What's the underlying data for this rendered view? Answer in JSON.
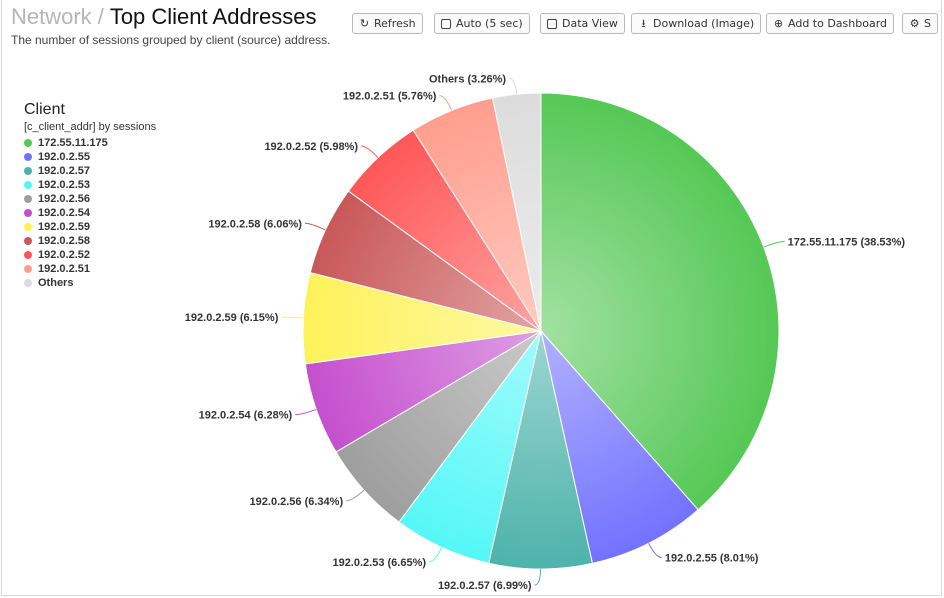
{
  "header": {
    "crumb": "Network",
    "separator": "/",
    "title": "Top Client Addresses",
    "subtitle": "The number of sessions grouped by client (source) address."
  },
  "toolbar": {
    "refresh": "Refresh",
    "auto": "Auto (5 sec)",
    "data_view": "Data View",
    "download": "Download (Image)",
    "add_dashboard": "Add to Dashboard",
    "settings": "S"
  },
  "legend": {
    "title": "Client",
    "subtitle": "[c_client_addr] by sessions"
  },
  "chart_data": {
    "type": "pie",
    "title": "",
    "legend_position": "left",
    "slices": [
      {
        "name": "172.55.11.175",
        "value": 38.53,
        "label": "172.55.11.175 (38.53%)",
        "color": "#55c855"
      },
      {
        "name": "192.0.2.55",
        "value": 8.01,
        "label": "192.0.2.55 (8.01%)",
        "color": "#7272ff"
      },
      {
        "name": "192.0.2.57",
        "value": 6.99,
        "label": "192.0.2.57 (6.99%)",
        "color": "#4db3ab"
      },
      {
        "name": "192.0.2.53",
        "value": 6.65,
        "label": "192.0.2.53 (6.65%)",
        "color": "#55f7f7"
      },
      {
        "name": "192.0.2.56",
        "value": 6.34,
        "label": "192.0.2.56 (6.34%)",
        "color": "#9e9e9e"
      },
      {
        "name": "192.0.2.54",
        "value": 6.28,
        "label": "192.0.2.54 (6.28%)",
        "color": "#c54fce"
      },
      {
        "name": "192.0.2.59",
        "value": 6.15,
        "label": "192.0.2.59 (6.15%)",
        "color": "#fef25a"
      },
      {
        "name": "192.0.2.58",
        "value": 6.06,
        "label": "192.0.2.58 (6.06%)",
        "color": "#c95858"
      },
      {
        "name": "192.0.2.52",
        "value": 5.98,
        "label": "192.0.2.52 (5.98%)",
        "color": "#ff5757"
      },
      {
        "name": "192.0.2.51",
        "value": 5.76,
        "label": "192.0.2.51 (5.76%)",
        "color": "#ff9e8e"
      },
      {
        "name": "Others",
        "value": 3.26,
        "label": "Others (3.26%)",
        "color": "#dcdcdc"
      }
    ]
  }
}
